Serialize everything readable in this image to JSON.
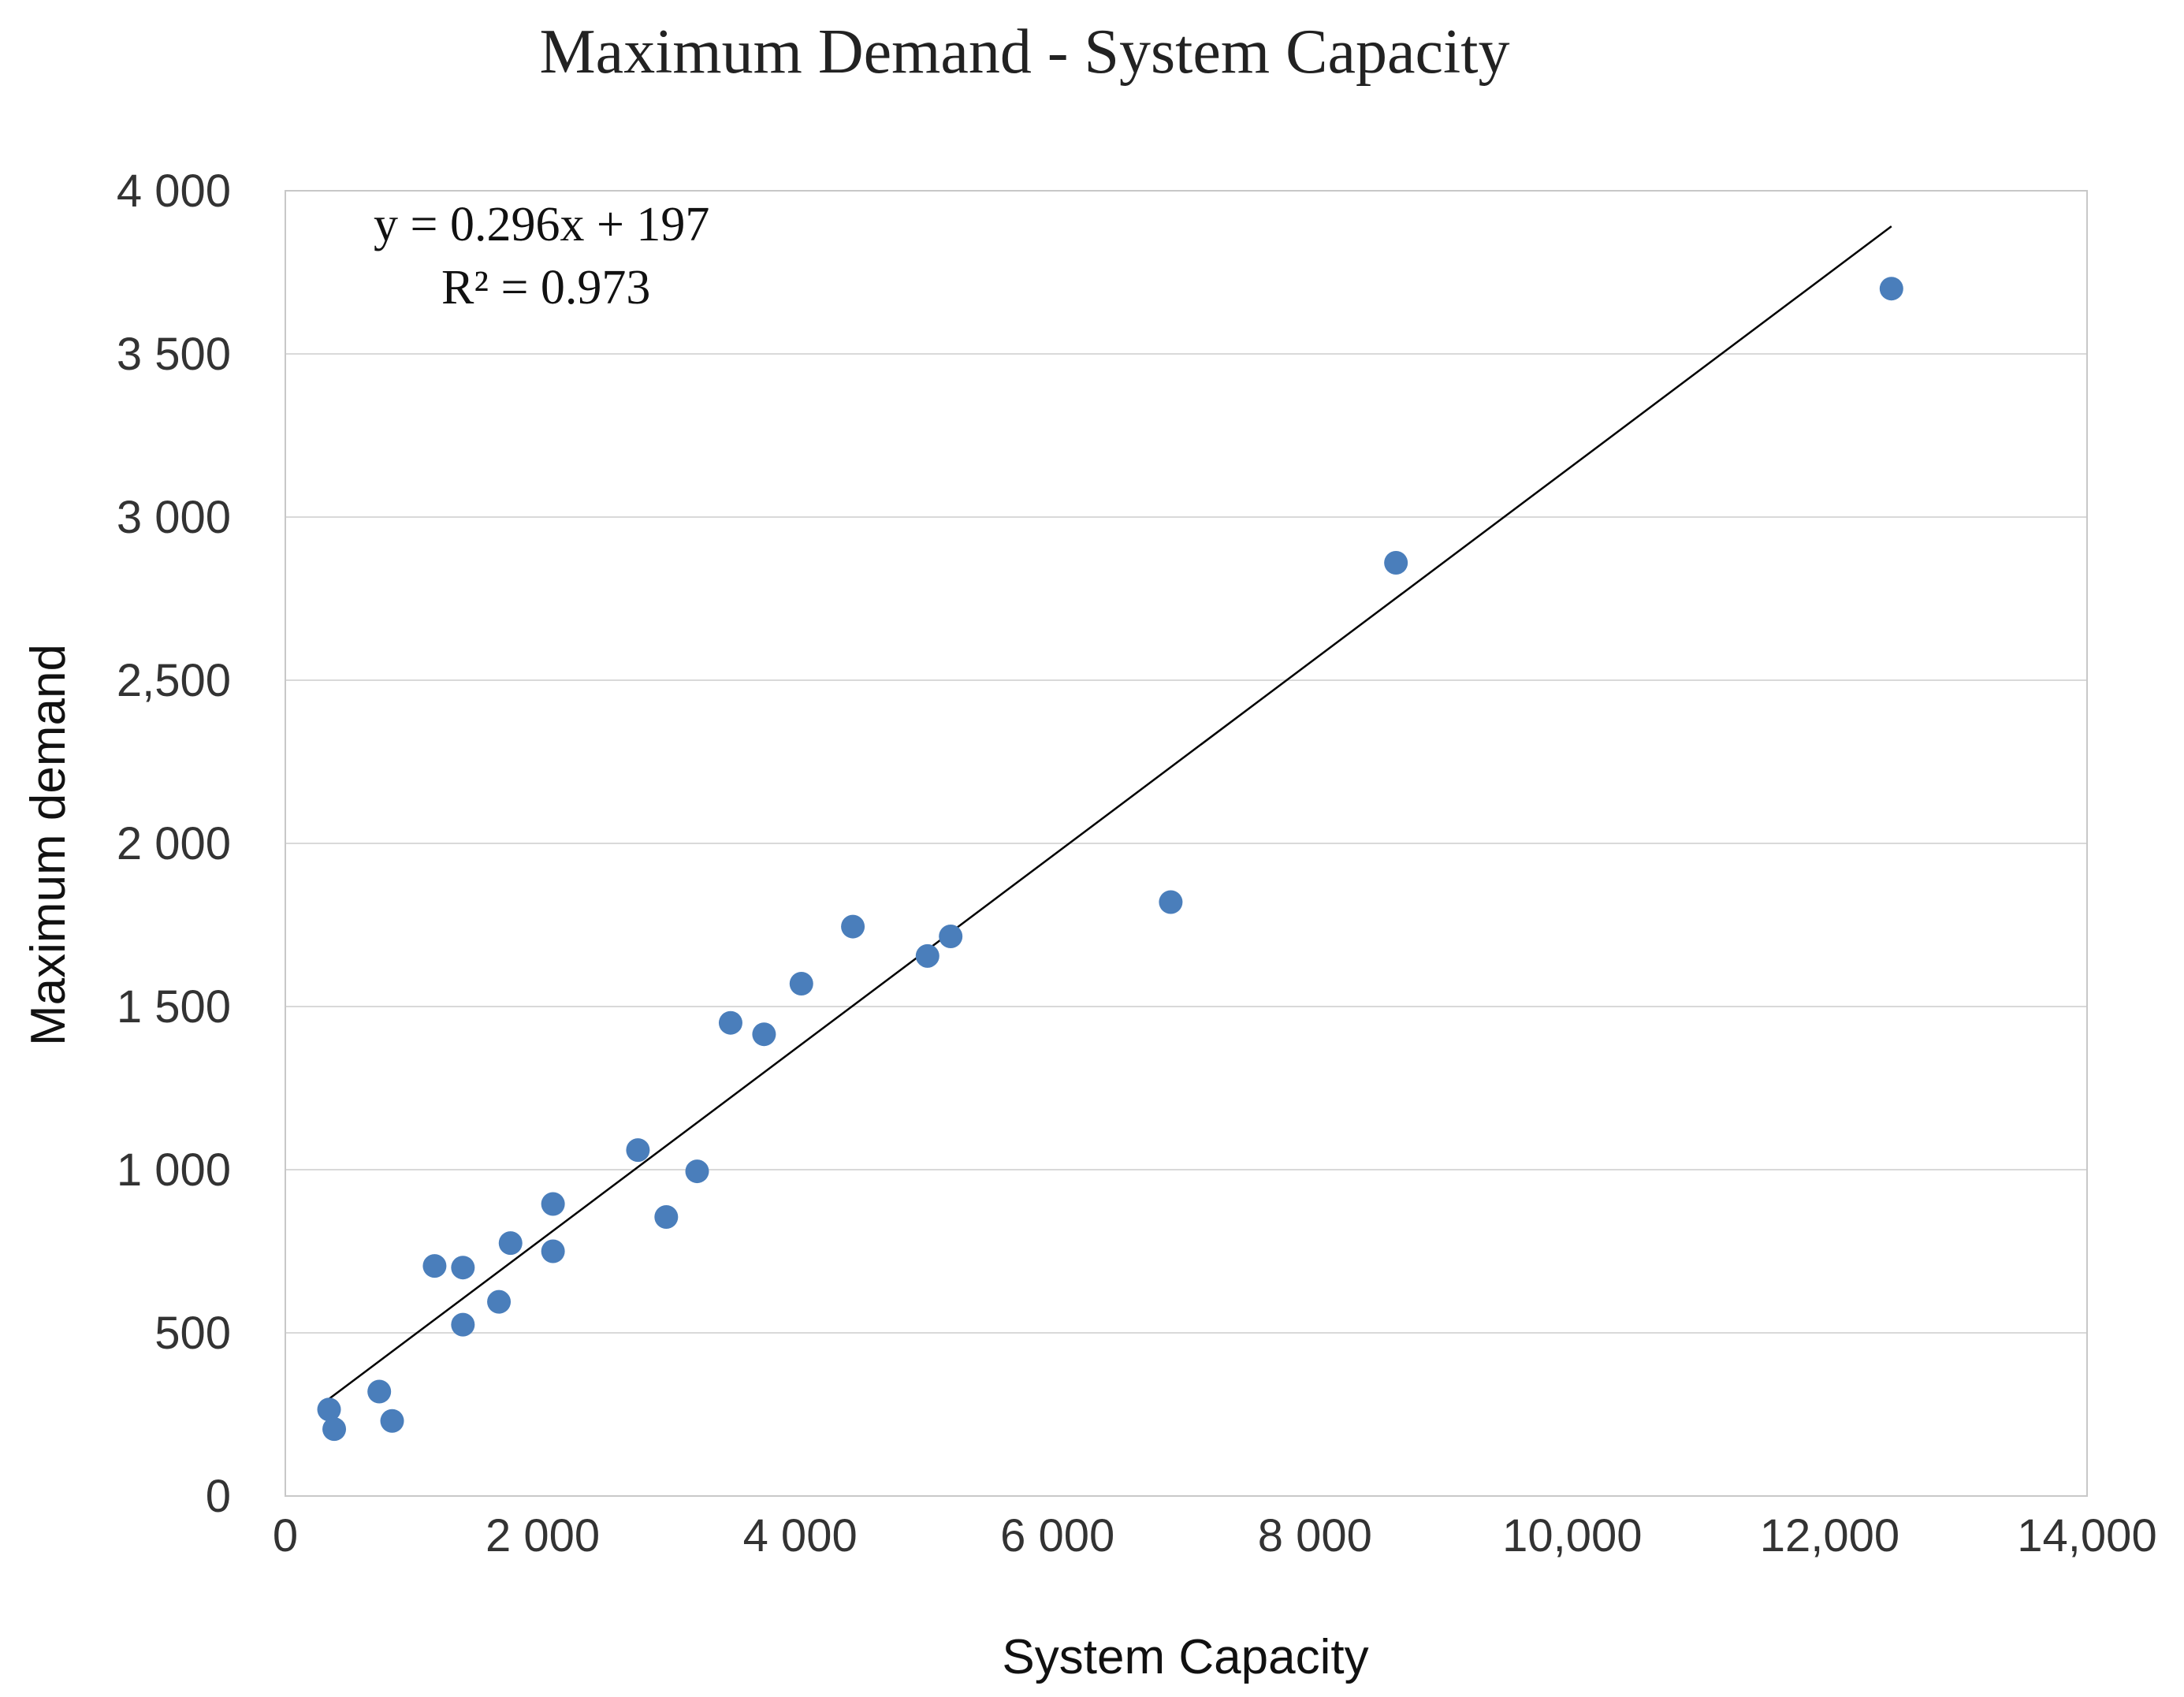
{
  "chart_data": {
    "type": "scatter",
    "title": "Maximum Demand - System Capacity",
    "xlabel": "System Capacity",
    "ylabel": "Maximum demand",
    "xlim": [
      0,
      14000
    ],
    "ylim": [
      0,
      4000
    ],
    "grid": true,
    "x_ticks": [
      {
        "value": 0,
        "label": "0"
      },
      {
        "value": 2000,
        "label": "2 000"
      },
      {
        "value": 4000,
        "label": "4 000"
      },
      {
        "value": 6000,
        "label": "6 000"
      },
      {
        "value": 8000,
        "label": "8 000"
      },
      {
        "value": 10000,
        "label": "10,000"
      },
      {
        "value": 12000,
        "label": "12,000"
      },
      {
        "value": 14000,
        "label": "14,000"
      }
    ],
    "y_ticks": [
      {
        "value": 0,
        "label": "0"
      },
      {
        "value": 500,
        "label": "500"
      },
      {
        "value": 1000,
        "label": "1 000"
      },
      {
        "value": 1500,
        "label": "1 500"
      },
      {
        "value": 2000,
        "label": "2 000"
      },
      {
        "value": 2500,
        "label": "2,500"
      },
      {
        "value": 3000,
        "label": "3 000"
      },
      {
        "value": 3500,
        "label": "3 500"
      },
      {
        "value": 4000,
        "label": "4 000"
      }
    ],
    "series": [
      {
        "name": "Maximum demand",
        "color": "#4a7ebb",
        "points": [
          {
            "x": 340,
            "y": 265
          },
          {
            "x": 380,
            "y": 205
          },
          {
            "x": 730,
            "y": 320
          },
          {
            "x": 830,
            "y": 230
          },
          {
            "x": 1160,
            "y": 705
          },
          {
            "x": 1380,
            "y": 700
          },
          {
            "x": 1380,
            "y": 525
          },
          {
            "x": 1660,
            "y": 595
          },
          {
            "x": 1750,
            "y": 775
          },
          {
            "x": 2080,
            "y": 895
          },
          {
            "x": 2080,
            "y": 750
          },
          {
            "x": 2740,
            "y": 1060
          },
          {
            "x": 2960,
            "y": 855
          },
          {
            "x": 3200,
            "y": 995
          },
          {
            "x": 3460,
            "y": 1450
          },
          {
            "x": 3720,
            "y": 1415
          },
          {
            "x": 4010,
            "y": 1570
          },
          {
            "x": 4410,
            "y": 1745
          },
          {
            "x": 4990,
            "y": 1655
          },
          {
            "x": 5170,
            "y": 1715
          },
          {
            "x": 6880,
            "y": 1820
          },
          {
            "x": 8630,
            "y": 2860
          },
          {
            "x": 12480,
            "y": 3700
          }
        ]
      }
    ],
    "trendline": {
      "slope": 0.296,
      "intercept": 197,
      "x_start": 340,
      "x_end": 12480,
      "color": "#000000",
      "equation_label": "y = 0.296x + 197",
      "r2_label": "R² = 0.973"
    }
  }
}
